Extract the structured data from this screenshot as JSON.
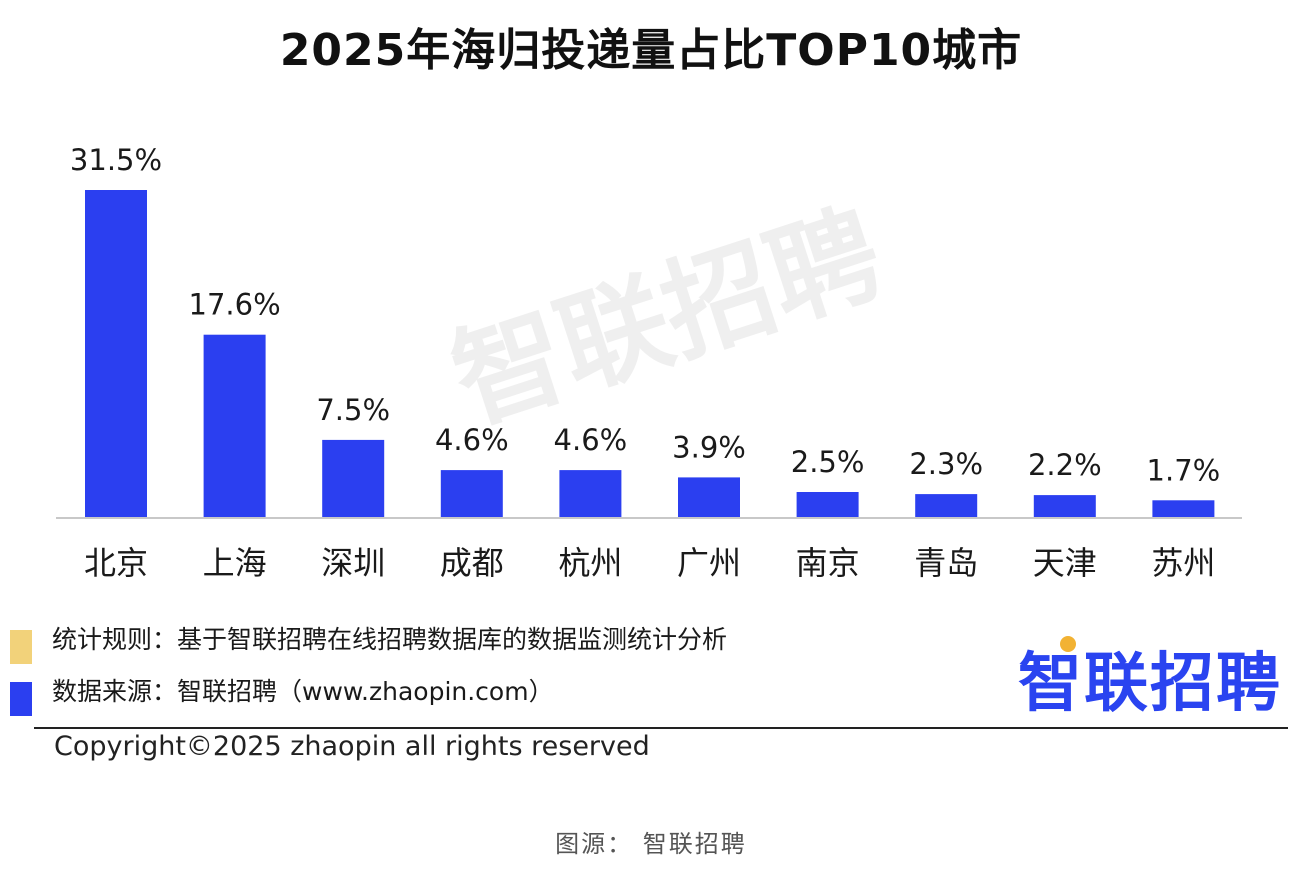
{
  "chart_data": {
    "type": "bar",
    "title": "2025年海归投递量占比TOP10城市",
    "categories": [
      "北京",
      "上海",
      "深圳",
      "成都",
      "杭州",
      "广州",
      "南京",
      "青岛",
      "天津",
      "苏州"
    ],
    "values": [
      31.5,
      17.6,
      7.5,
      4.6,
      4.6,
      3.9,
      2.5,
      2.3,
      2.2,
      1.7
    ],
    "value_labels": [
      "31.5%",
      "17.6%",
      "7.5%",
      "4.6%",
      "4.6%",
      "3.9%",
      "2.5%",
      "2.3%",
      "2.2%",
      "1.7%"
    ],
    "unit": "%",
    "bar_color": "#2b3ff0",
    "ylim": [
      0,
      31.5
    ],
    "grid": false,
    "xlabel": "",
    "ylabel": ""
  },
  "watermark": "智联招聘",
  "legend": [
    {
      "text": "统计规则：基于智联招聘在线招聘数据库的数据监测统计分析",
      "color": "#f2d27a"
    },
    {
      "text": "数据来源：智联招聘（www.zhaopin.com）",
      "color": "#2b3ff0"
    }
  ],
  "brand": {
    "name": "智联招聘",
    "color": "#2a44f0",
    "dot_color": "#f2b233"
  },
  "copyright": "Copyright©2025 zhaopin all rights reserved",
  "image_source": "图源： 智联招聘"
}
